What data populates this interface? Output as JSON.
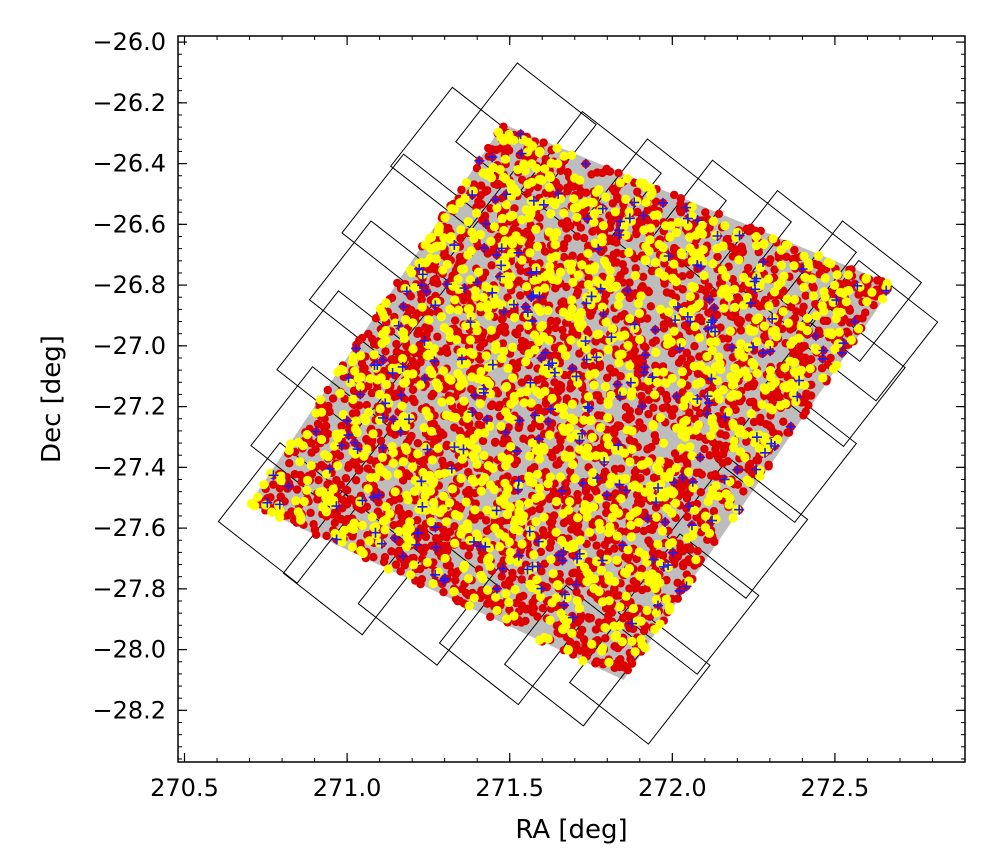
{
  "chart_data": {
    "type": "scatter",
    "title": "",
    "xlabel": "RA [deg]",
    "ylabel": "Dec [deg]",
    "xlim": [
      270.48,
      272.9
    ],
    "ylim": [
      -28.37,
      -25.98
    ],
    "xticks": [
      270.5,
      271.0,
      271.5,
      272.0,
      272.5
    ],
    "xtick_labels": [
      "270.5",
      "271.0",
      "271.5",
      "272.0",
      "272.5"
    ],
    "yticks": [
      -26.0,
      -26.2,
      -26.4,
      -26.6,
      -26.8,
      -27.0,
      -27.2,
      -27.4,
      -27.6,
      -27.8,
      -28.0,
      -28.2
    ],
    "ytick_labels": [
      "−26.0",
      "−26.2",
      "−26.4",
      "−26.6",
      "−26.8",
      "−27.0",
      "−27.2",
      "−27.4",
      "−27.6",
      "−27.8",
      "−28.0",
      "−28.2"
    ],
    "grid": false,
    "legend": "none",
    "footprint": {
      "color": "#bdbdbd",
      "corners": [
        [
          270.7,
          -27.52
        ],
        [
          271.48,
          -26.27
        ],
        [
          272.68,
          -26.8
        ],
        [
          271.85,
          -28.1
        ]
      ]
    },
    "tiles": {
      "edge_color": "#000000",
      "centers": [
        [
          271.35,
          -26.38
        ],
        [
          271.55,
          -26.3
        ],
        [
          271.75,
          -26.46
        ],
        [
          271.95,
          -26.55
        ],
        [
          272.15,
          -26.62
        ],
        [
          272.35,
          -26.72
        ],
        [
          272.55,
          -26.82
        ],
        [
          271.2,
          -26.6
        ],
        [
          271.1,
          -26.82
        ],
        [
          271.0,
          -27.05
        ],
        [
          270.92,
          -27.3
        ],
        [
          270.82,
          -27.55
        ],
        [
          271.02,
          -27.72
        ],
        [
          271.25,
          -27.82
        ],
        [
          271.5,
          -27.95
        ],
        [
          271.7,
          -28.02
        ],
        [
          271.9,
          -28.08
        ],
        [
          272.05,
          -27.85
        ],
        [
          272.2,
          -27.6
        ],
        [
          272.35,
          -27.35
        ],
        [
          272.5,
          -27.1
        ],
        [
          272.6,
          -26.95
        ]
      ]
    },
    "series": [
      {
        "marker": "circle",
        "color": "#dd0000",
        "count": 3200
      },
      {
        "marker": "circle",
        "color": "#ffff00",
        "count": 1300
      },
      {
        "marker": "plus",
        "color": "#1a1aff",
        "count": 260
      }
    ]
  }
}
